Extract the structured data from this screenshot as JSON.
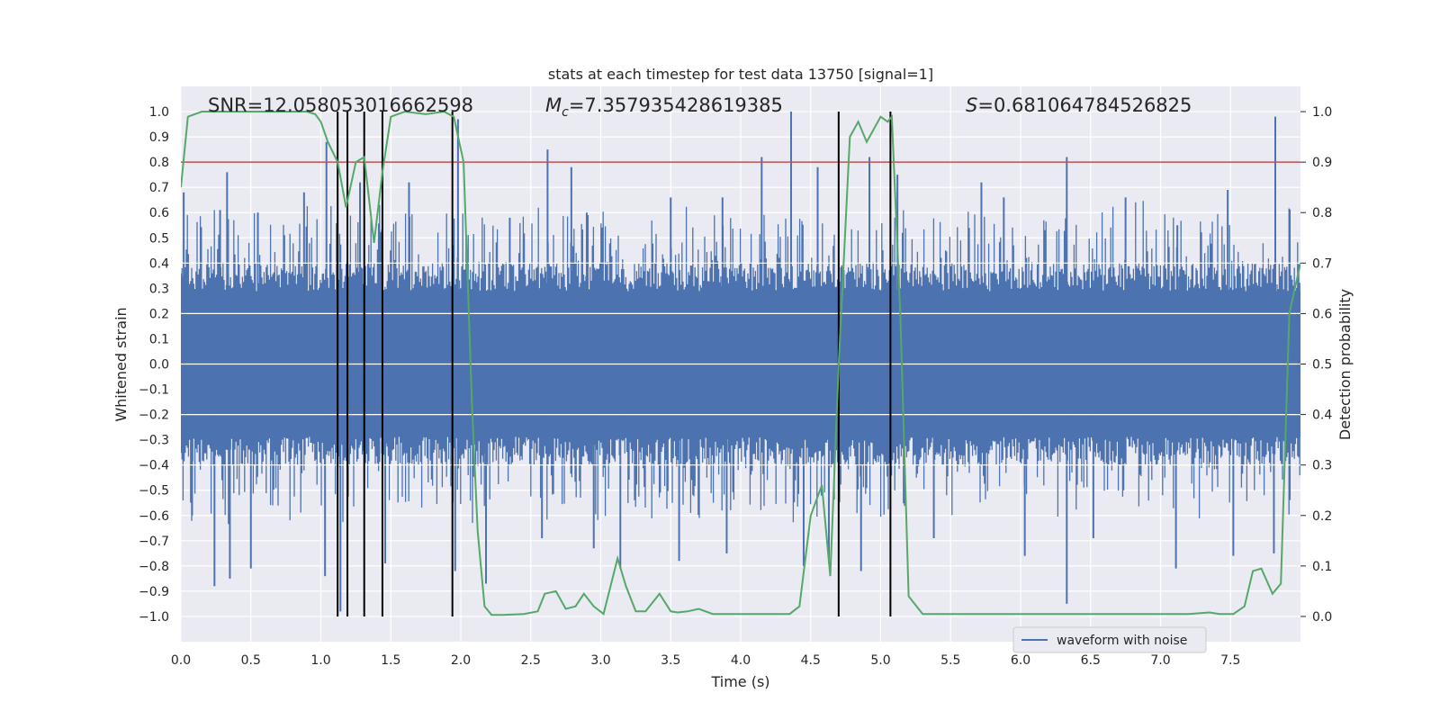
{
  "chart_data": {
    "type": "line",
    "title": "stats at each timestep for test data 13750 [signal=1]",
    "xlabel": "Time (s)",
    "ylabel_left": "Whitened strain",
    "ylabel_right": "Detection probability",
    "xlim": [
      0.0,
      8.0
    ],
    "ylim_left": [
      -1.1,
      1.1
    ],
    "ylim_right": [
      -0.05,
      1.05
    ],
    "x_ticks": [
      "0.0",
      "0.5",
      "1.0",
      "1.5",
      "2.0",
      "2.5",
      "3.0",
      "3.5",
      "4.0",
      "4.5",
      "5.0",
      "5.5",
      "6.0",
      "6.5",
      "7.0",
      "7.5"
    ],
    "y_ticks_left": [
      "1.0",
      "0.9",
      "0.8",
      "0.7",
      "0.6",
      "0.5",
      "0.4",
      "0.3",
      "0.2",
      "0.1",
      "0.0",
      "−0.1",
      "−0.2",
      "−0.3",
      "−0.4",
      "−0.5",
      "−0.6",
      "−0.7",
      "−0.8",
      "−0.9",
      "−1.0"
    ],
    "y_ticks_right": [
      "1.0",
      "0.9",
      "0.8",
      "0.7",
      "0.6",
      "0.5",
      "0.4",
      "0.3",
      "0.2",
      "0.1",
      "0.0"
    ],
    "grid": true,
    "annotations": {
      "snr": "SNR=12.058053016662598",
      "mc_symbol": "M",
      "mc_sub": "c",
      "mc_value": "=7.357935428619385",
      "s_symbol": "S",
      "s_value": "=0.681064784526825"
    },
    "threshold": {
      "name": "detection threshold",
      "value": 0.9,
      "axis": "right",
      "color": "#c44e52"
    },
    "vertical_markers": [
      1.12,
      1.19,
      1.31,
      1.44,
      1.94,
      4.7,
      5.07
    ],
    "waveform": {
      "name": "waveform with noise",
      "color": "#4c72b0",
      "core_amplitude": 0.4,
      "spikes_up": [
        [
          0.02,
          0.68
        ],
        [
          0.28,
          0.61
        ],
        [
          0.33,
          0.76
        ],
        [
          0.55,
          0.6
        ],
        [
          0.88,
          0.68
        ],
        [
          1.04,
          0.88
        ],
        [
          1.28,
          0.72
        ],
        [
          1.63,
          0.72
        ],
        [
          1.98,
          0.97
        ],
        [
          2.35,
          0.58
        ],
        [
          2.62,
          0.85
        ],
        [
          2.79,
          0.78
        ],
        [
          2.9,
          0.6
        ],
        [
          3.5,
          0.66
        ],
        [
          3.87,
          0.66
        ],
        [
          4.15,
          0.82
        ],
        [
          4.36,
          1.0
        ],
        [
          4.55,
          0.78
        ],
        [
          4.92,
          0.82
        ],
        [
          5.12,
          0.75
        ],
        [
          5.72,
          0.72
        ],
        [
          5.88,
          0.66
        ],
        [
          6.33,
          0.82
        ],
        [
          6.75,
          0.66
        ],
        [
          7.12,
          0.55
        ],
        [
          7.48,
          0.69
        ],
        [
          7.82,
          0.98
        ]
      ],
      "spikes_down": [
        [
          0.08,
          -0.6
        ],
        [
          0.24,
          -0.88
        ],
        [
          0.35,
          -0.85
        ],
        [
          0.5,
          -0.81
        ],
        [
          1.03,
          -0.84
        ],
        [
          1.14,
          -0.98
        ],
        [
          1.46,
          -0.79
        ],
        [
          1.96,
          -0.82
        ],
        [
          2.18,
          -0.87
        ],
        [
          2.58,
          -0.69
        ],
        [
          2.95,
          -0.73
        ],
        [
          3.14,
          -0.81
        ],
        [
          3.56,
          -0.78
        ],
        [
          3.9,
          -0.75
        ],
        [
          4.45,
          -0.8
        ],
        [
          4.63,
          -0.79
        ],
        [
          4.86,
          -0.82
        ],
        [
          5.38,
          -0.69
        ],
        [
          6.03,
          -0.76
        ],
        [
          6.33,
          -0.95
        ],
        [
          6.52,
          -0.69
        ],
        [
          7.11,
          -0.81
        ],
        [
          7.52,
          -0.76
        ],
        [
          7.81,
          -0.75
        ]
      ]
    },
    "detection_probability": {
      "name": "detection probability",
      "color": "#55a868",
      "axis": "right",
      "x": [
        0.0,
        0.05,
        0.15,
        0.3,
        0.45,
        0.6,
        0.75,
        0.9,
        0.96,
        1.0,
        1.05,
        1.12,
        1.18,
        1.25,
        1.31,
        1.38,
        1.44,
        1.5,
        1.6,
        1.75,
        1.88,
        1.95,
        2.02,
        2.08,
        2.12,
        2.17,
        2.22,
        2.3,
        2.45,
        2.55,
        2.6,
        2.68,
        2.75,
        2.82,
        2.88,
        2.95,
        3.02,
        3.12,
        3.18,
        3.25,
        3.32,
        3.42,
        3.5,
        3.55,
        3.62,
        3.7,
        3.8,
        4.0,
        4.2,
        4.35,
        4.42,
        4.5,
        4.58,
        4.64,
        4.7,
        4.78,
        4.84,
        4.9,
        5.0,
        5.05,
        5.08,
        5.14,
        5.2,
        5.3,
        5.5,
        5.7,
        5.9,
        6.1,
        6.5,
        7.0,
        7.2,
        7.35,
        7.42,
        7.52,
        7.6,
        7.66,
        7.72,
        7.8,
        7.86,
        7.92,
        8.0
      ],
      "y": [
        0.85,
        0.99,
        1.0,
        1.0,
        1.0,
        1.0,
        1.0,
        1.0,
        0.995,
        0.98,
        0.94,
        0.9,
        0.81,
        0.9,
        0.91,
        0.74,
        0.88,
        0.99,
        1.0,
        0.995,
        1.0,
        0.99,
        0.9,
        0.42,
        0.17,
        0.02,
        0.003,
        0.003,
        0.005,
        0.01,
        0.045,
        0.05,
        0.015,
        0.02,
        0.045,
        0.02,
        0.005,
        0.115,
        0.06,
        0.01,
        0.01,
        0.045,
        0.01,
        0.008,
        0.01,
        0.015,
        0.005,
        0.005,
        0.005,
        0.005,
        0.02,
        0.2,
        0.26,
        0.08,
        0.5,
        0.95,
        0.98,
        0.94,
        0.99,
        0.98,
        0.99,
        0.6,
        0.04,
        0.005,
        0.005,
        0.005,
        0.005,
        0.005,
        0.005,
        0.005,
        0.005,
        0.008,
        0.005,
        0.005,
        0.02,
        0.09,
        0.095,
        0.045,
        0.065,
        0.6,
        0.7
      ]
    },
    "legend": {
      "label": "waveform with noise",
      "placement": "lower-right"
    }
  }
}
